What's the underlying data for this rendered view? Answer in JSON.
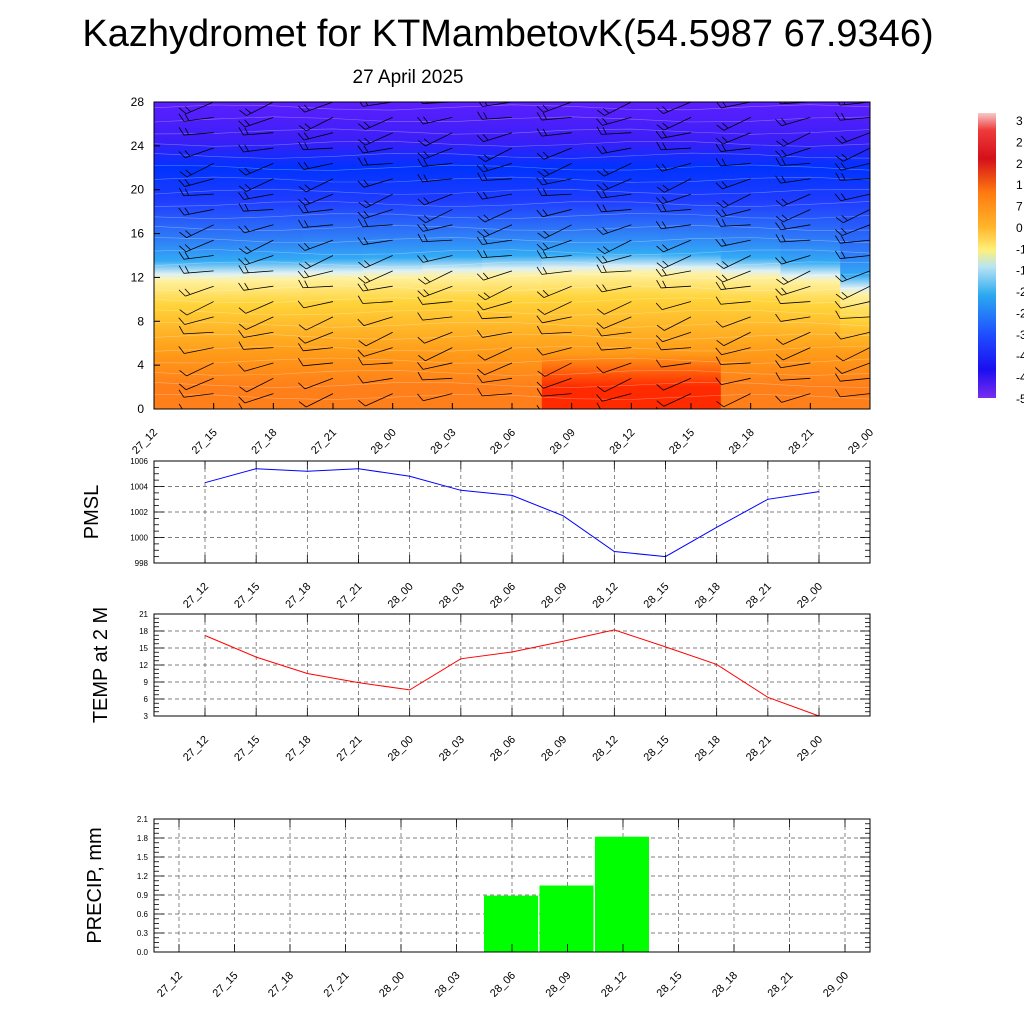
{
  "header": {
    "title": "Kazhydromet for KTMambetovK(54.5987 67.9346)",
    "subtitle": "27 April 2025"
  },
  "time_labels": [
    "27_12",
    "27_15",
    "27_18",
    "27_21",
    "28_00",
    "28_03",
    "28_06",
    "28_09",
    "28_12",
    "28_15",
    "28_18",
    "28_21",
    "29_00"
  ],
  "colorbar": {
    "visible_labels": [
      "3",
      "2",
      "2",
      "1",
      "7",
      "0",
      "-1",
      "-1",
      "-2",
      "-2",
      "-3",
      "-4",
      "-4",
      "-5"
    ]
  },
  "chart_data": [
    {
      "type": "heatmap",
      "name_note": "cross-section",
      "x": [
        "27_12",
        "27_15",
        "27_18",
        "27_21",
        "28_00",
        "28_03",
        "28_06",
        "28_09",
        "28_12",
        "28_15",
        "28_18",
        "28_21",
        "29_00"
      ],
      "yticks": [
        0,
        4,
        8,
        12,
        16,
        20,
        24,
        28
      ],
      "ylim": [
        0,
        28
      ],
      "freezing_level": [
        12.0,
        12.0,
        12.1,
        12.2,
        12.3,
        12.4,
        12.5,
        12.6,
        12.7,
        12.6,
        12.3,
        11.9,
        10.7
      ],
      "colors": {
        "warm_max": "#ff2a00",
        "warm": "#ff7f1a",
        "mild": "#ffd43a",
        "cold": "#33aaf5",
        "very_cold": "#0033ff",
        "coldest": "#5d1fff"
      }
    },
    {
      "type": "line",
      "ylabel": "PMSL",
      "categories": [
        "27_12",
        "27_15",
        "27_18",
        "27_21",
        "28_00",
        "28_03",
        "28_06",
        "28_09",
        "28_12",
        "28_15",
        "28_18",
        "28_21",
        "29_00"
      ],
      "values": [
        1004.3,
        1005.4,
        1005.2,
        1005.4,
        1004.8,
        1003.7,
        1003.3,
        1001.7,
        998.9,
        998.5,
        1000.8,
        1003.0,
        1003.6
      ],
      "ylim": [
        998,
        1006
      ],
      "yticks": [
        998,
        1000,
        1002,
        1004,
        1006
      ],
      "color": "#0000ff",
      "grid": true
    },
    {
      "type": "line",
      "ylabel": "TEMP at 2 M",
      "categories": [
        "27_12",
        "27_15",
        "27_18",
        "27_21",
        "28_00",
        "28_03",
        "28_06",
        "28_09",
        "28_12",
        "28_15",
        "28_18",
        "28_21",
        "29_00"
      ],
      "values": [
        17.2,
        13.4,
        10.5,
        8.9,
        7.6,
        13.1,
        14.3,
        16.2,
        18.2,
        15.2,
        12.1,
        6.3,
        3.0
      ],
      "ylim": [
        3,
        21
      ],
      "yticks": [
        3,
        6,
        9,
        12,
        15,
        18,
        21
      ],
      "color": "#ff0000",
      "grid": true
    },
    {
      "type": "bar",
      "ylabel": "PRECIP, mm",
      "categories": [
        "27_12",
        "27_15",
        "27_18",
        "27_21",
        "28_00",
        "28_03",
        "28_06",
        "28_09",
        "28_12",
        "28_15",
        "28_18",
        "28_21",
        "29_00"
      ],
      "values": [
        0,
        0,
        0,
        0,
        0,
        0,
        0.89,
        1.05,
        1.82,
        0,
        0,
        0,
        0
      ],
      "ylim": [
        0,
        2.1
      ],
      "yticks": [
        "0.0",
        "0.3",
        "0.6",
        "0.9",
        "1.2",
        "1.5",
        "1.8",
        "2.1"
      ],
      "color": "#00ff00",
      "grid": true
    }
  ]
}
